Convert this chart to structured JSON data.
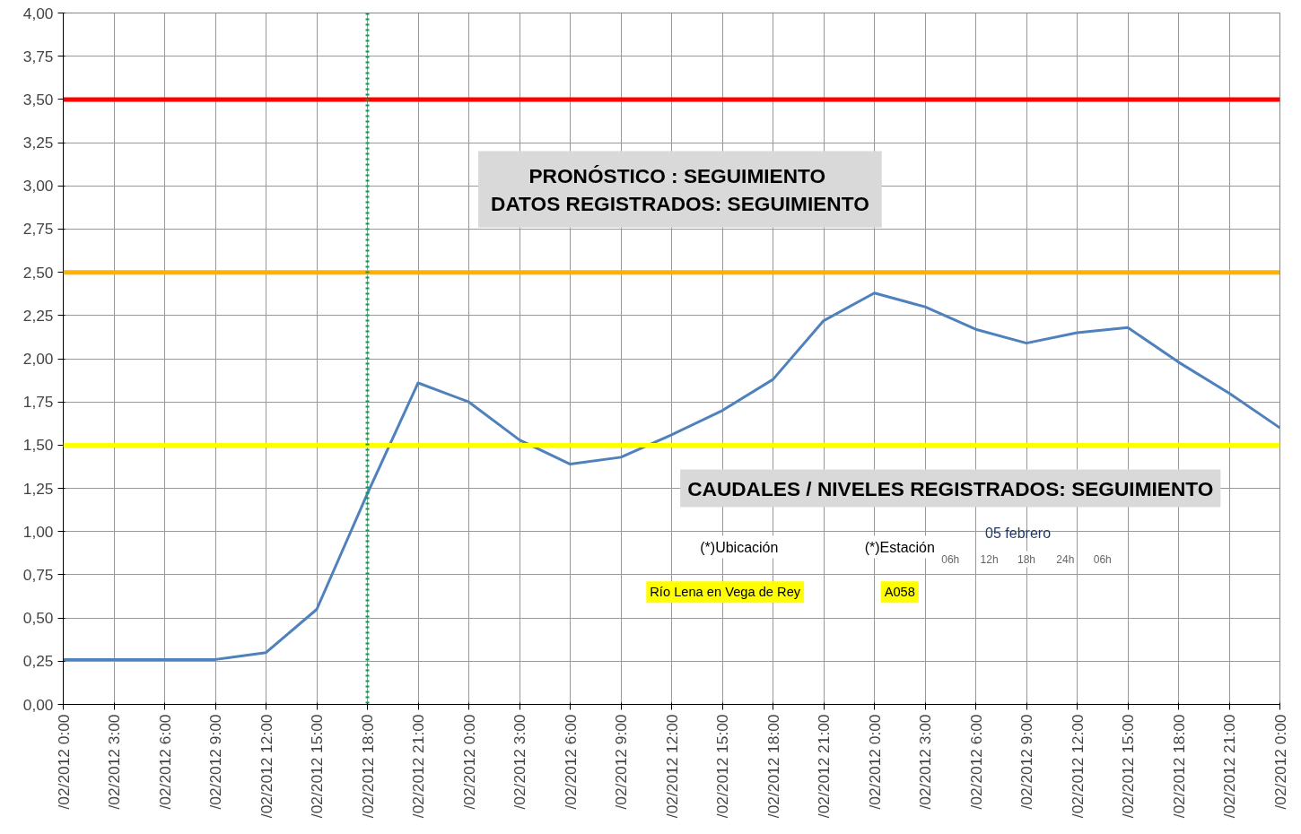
{
  "chart_data": {
    "type": "line",
    "categories": [
      "/02/2012 0:00",
      "/02/2012 3:00",
      "/02/2012 6:00",
      "/02/2012 9:00",
      "/02/2012 12:00",
      "/02/2012 15:00",
      "/02/2012 18:00",
      "/02/2012 21:00",
      "/02/2012 0:00",
      "/02/2012 3:00",
      "/02/2012 6:00",
      "/02/2012 9:00",
      "/02/2012 12:00",
      "/02/2012 15:00",
      "/02/2012 18:00",
      "/02/2012 21:00",
      "/02/2012 0:00",
      "/02/2012 3:00",
      "/02/2012 6:00",
      "/02/2012 9:00",
      "/02/2012 12:00",
      "/02/2012 15:00",
      "/02/2012 18:00",
      "/02/2012 21:00",
      "/02/2012 0:00"
    ],
    "series": [
      {
        "color": "#4f81bd",
        "values": [
          0.26,
          0.26,
          0.26,
          0.26,
          0.3,
          0.55,
          1.22,
          1.86,
          1.75,
          1.53,
          1.39,
          1.43,
          1.56,
          1.7,
          1.88,
          2.22,
          2.38,
          2.3,
          2.17,
          2.09,
          2.15,
          2.18,
          1.98,
          1.8,
          1.6
        ]
      }
    ],
    "ylim": [
      0,
      4
    ],
    "yticks": [
      {
        "value": 0,
        "label": "0,00"
      },
      {
        "value": 0.25,
        "label": "0,25"
      },
      {
        "value": 0.5,
        "label": "0,50"
      },
      {
        "value": 0.75,
        "label": "0,75"
      },
      {
        "value": 1,
        "label": "1,00"
      },
      {
        "value": 1.25,
        "label": "1,25"
      },
      {
        "value": 1.5,
        "label": "1,50"
      },
      {
        "value": 1.75,
        "label": "1,75"
      },
      {
        "value": 2,
        "label": "2,00"
      },
      {
        "value": 2.25,
        "label": "2,25"
      },
      {
        "value": 2.5,
        "label": "2,50"
      },
      {
        "value": 2.75,
        "label": "2,75"
      },
      {
        "value": 3,
        "label": "3,00"
      },
      {
        "value": 3.25,
        "label": "3,25"
      },
      {
        "value": 3.5,
        "label": "3,50"
      },
      {
        "value": 3.75,
        "label": "3,75"
      },
      {
        "value": 4,
        "label": "4,00"
      }
    ],
    "grid": true,
    "marker": "none",
    "line_style": "solid",
    "ref_lines": [
      {
        "axis": "y",
        "value": 3.5,
        "color": "#ff0000"
      },
      {
        "axis": "y",
        "value": 2.5,
        "color": "#ffb000"
      },
      {
        "axis": "y",
        "value": 1.5,
        "color": "#ffff00"
      },
      {
        "axis": "x",
        "value": "/02/2012 18:00",
        "color": "#00a050",
        "line_style": "dotted"
      }
    ],
    "annotations": [
      "PRONÓSTICO :  SEGUIMIENTO\nDATOS REGISTRADOS: SEGUIMIENTO",
      "CAUDALES / NIVELES REGISTRADOS: SEGUIMIENTO",
      "(*)Ubicación",
      "(*)Estación",
      "05 febrero",
      "06h",
      "12h",
      "18h",
      "24h",
      "06h",
      "Río Lena en Vega de Rey",
      "A058"
    ]
  }
}
